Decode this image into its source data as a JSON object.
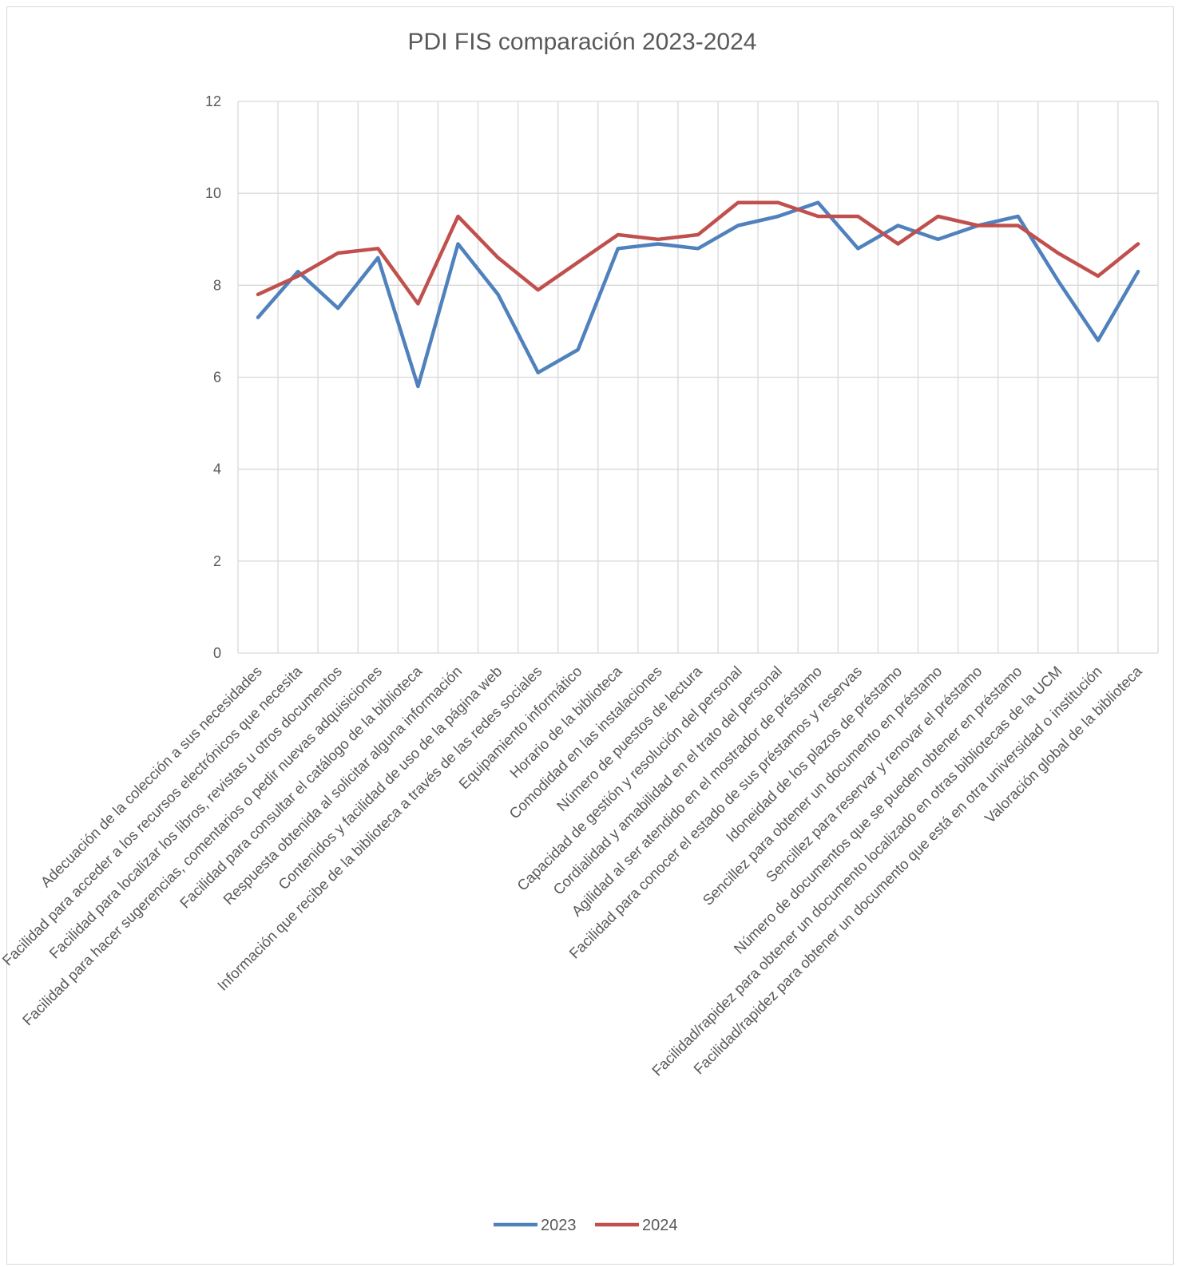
{
  "chart_data": {
    "type": "line",
    "title": "PDI FIS comparación 2023-2024",
    "xlabel": "",
    "ylabel": "",
    "ylim": [
      0,
      12
    ],
    "yticks": [
      0,
      2,
      4,
      6,
      8,
      10,
      12
    ],
    "grid": true,
    "legend_position": "bottom",
    "categories": [
      "Adecuación de la colección a sus necesidades",
      "Facilidad para acceder a los recursos electrónicos que necesita",
      "Facilidad para localizar los libros, revistas u otros documentos",
      "Facilidad para hacer sugerencias, comentarios o pedir nuevas adquisiciones",
      "Facilidad para consultar el catálogo de la biblioteca",
      "Respuesta obtenida al solicitar alguna información",
      "Contenidos y facilidad de uso de la página web",
      "Información que recibe de la biblioteca a través de las redes sociales",
      "Equipamiento informático",
      "Horario de la biblioteca",
      "Comodidad en las instalaciones",
      "Número de puestos de lectura",
      "Capacidad de gestión y resolución del personal",
      "Cordialidad y amabilidad en el trato del personal",
      "Agilidad al ser atendido en el mostrador de préstamo",
      "Facilidad para conocer el estado de sus préstamos y reservas",
      "Idoneidad de los plazos de préstamo",
      "Sencillez para obtener un documento en préstamo",
      "Sencillez para reservar y renovar el préstamo",
      "Número de documentos que se pueden obtener en préstamo",
      "Facilidad/rapidez para obtener un documento localizado en otras bibliotecas de la UCM",
      "Facilidad/rapidez para obtener un documento que está en otra universidad o institución",
      "Valoración global de la biblioteca"
    ],
    "series": [
      {
        "name": "2023",
        "color": "#4F81BD",
        "values": [
          7.3,
          8.3,
          7.5,
          8.6,
          5.8,
          8.9,
          7.8,
          6.1,
          6.6,
          8.8,
          8.9,
          8.8,
          9.3,
          9.5,
          9.8,
          8.8,
          9.3,
          9.0,
          9.3,
          9.5,
          8.1,
          6.8,
          8.3
        ]
      },
      {
        "name": "2024",
        "color": "#C0504D",
        "values": [
          7.8,
          8.2,
          8.7,
          8.8,
          7.6,
          9.5,
          8.6,
          7.9,
          8.5,
          9.1,
          9.0,
          9.1,
          9.8,
          9.8,
          9.5,
          9.5,
          8.9,
          9.5,
          9.3,
          9.3,
          8.7,
          8.2,
          8.9
        ]
      }
    ]
  }
}
